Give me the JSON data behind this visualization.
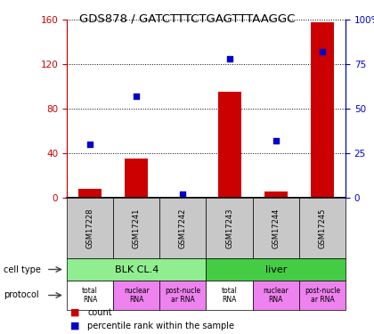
{
  "title": "GDS878 / GATCTTTCTGAGTTTAAGGC",
  "samples": [
    "GSM17228",
    "GSM17241",
    "GSM17242",
    "GSM17243",
    "GSM17244",
    "GSM17245"
  ],
  "counts": [
    8,
    35,
    1,
    95,
    6,
    158
  ],
  "percentiles": [
    30,
    57,
    2,
    78,
    32,
    82
  ],
  "ylim_left": [
    0,
    160
  ],
  "ylim_right": [
    0,
    100
  ],
  "yticks_left": [
    0,
    40,
    80,
    120,
    160
  ],
  "yticks_right": [
    0,
    25,
    50,
    75,
    100
  ],
  "ytick_labels_right": [
    "0",
    "25",
    "50",
    "75",
    "100%"
  ],
  "cell_types": [
    {
      "label": "BLK CL.4",
      "span": [
        0,
        3
      ],
      "color": "#90EE90"
    },
    {
      "label": "liver",
      "span": [
        3,
        6
      ],
      "color": "#44CC44"
    }
  ],
  "protocols": [
    {
      "label": "total\nRNA",
      "color": "#FFFFFF"
    },
    {
      "label": "nuclear\nRNA",
      "color": "#EE82EE"
    },
    {
      "label": "post-nucle\nar RNA",
      "color": "#EE82EE"
    },
    {
      "label": "total\nRNA",
      "color": "#FFFFFF"
    },
    {
      "label": "nuclear\nRNA",
      "color": "#EE82EE"
    },
    {
      "label": "post-nucle\nar RNA",
      "color": "#EE82EE"
    }
  ],
  "bar_color": "#CC0000",
  "scatter_color": "#0000CC",
  "axis_color_left": "#CC0000",
  "axis_color_right": "#0000CC",
  "sample_bg": "#C8C8C8"
}
